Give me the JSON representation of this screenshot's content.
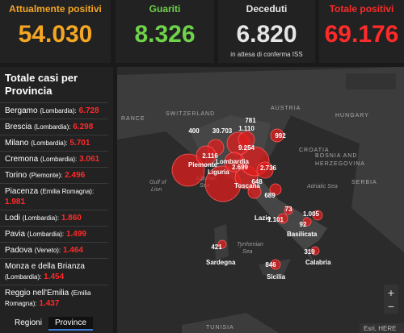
{
  "header": {
    "cards": [
      {
        "label": "Attualmente positivi",
        "value": "54.030",
        "color": "#f5a623"
      },
      {
        "label": "Guariti",
        "value": "8.326",
        "color": "#6fd34a"
      },
      {
        "label": "Deceduti",
        "value": "6.820",
        "color": "#e6e6e6",
        "note": "in attesa di conferma ISS"
      },
      {
        "label": "Totale positivi",
        "value": "69.176",
        "color": "#ff2a2a"
      }
    ]
  },
  "sidebar": {
    "title": "Totale casi per Provincia",
    "items": [
      {
        "name": "Bergamo",
        "region": "(Lombardia):",
        "value": "6.728"
      },
      {
        "name": "Brescia",
        "region": "(Lombardia):",
        "value": "6.298"
      },
      {
        "name": "Milano",
        "region": "(Lombardia):",
        "value": "5.701"
      },
      {
        "name": "Cremona",
        "region": "(Lombardia):",
        "value": "3.061"
      },
      {
        "name": "Torino",
        "region": "(Piemonte):",
        "value": "2.496"
      },
      {
        "name": "Piacenza",
        "region": "(Emilia Romagna):",
        "value": "1.981"
      },
      {
        "name": "Lodi",
        "region": "(Lombardia):",
        "value": "1.860"
      },
      {
        "name": "Pavia",
        "region": "(Lombardia):",
        "value": "1.499"
      },
      {
        "name": "Padova",
        "region": "(Veneto):",
        "value": "1.464"
      },
      {
        "name": "Monza e della Brianza",
        "region": "(Lombardia):",
        "value": "1.454"
      },
      {
        "name": "Reggio nell'Emilia",
        "region": "(Emilia Romagna):",
        "value": "1.437"
      }
    ],
    "tabs": [
      "Regioni",
      "Province"
    ]
  },
  "map": {
    "countries": [
      "RANCE",
      "SWITZERLAND",
      "AUSTRIA",
      "HUNGARY",
      "CROATIA",
      "BOSNIA AND",
      "HERZEGOVINA",
      "SERBIA",
      "TUNISIA"
    ],
    "seas": [
      "Gulf of",
      "Lion",
      "Ligurian",
      "Sea",
      "Adriatic Sea",
      "Tyrrhenian",
      "Sea"
    ],
    "regions": [
      "Piemonte",
      "Lombardia",
      "Liguria",
      "Toscana",
      "Lazio",
      "Basilicata",
      "Sardegna",
      "Calabria",
      "Sicilia"
    ],
    "bubbles": [
      "400",
      "30.703",
      "781",
      "1.110",
      "992",
      "9.254",
      "2.116",
      "2.699",
      "2.736",
      "648",
      "689",
      "73",
      "1.101",
      "1.005",
      "92",
      "421",
      "319",
      "846"
    ],
    "attribution": "Esri, HERE"
  }
}
